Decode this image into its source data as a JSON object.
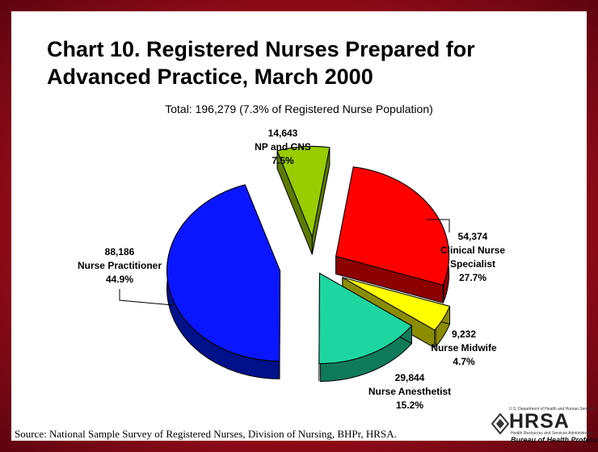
{
  "slide": {
    "title_line1": "Chart 10.  Registered Nurses Prepared for",
    "title_line2": "Advanced Practice, March 2000",
    "source": "Source: National Sample Survey of Registered Nurses, Division of Nursing, BHPr, HRSA."
  },
  "logo": {
    "top_text": "U.S. Department of Health and Human Services",
    "main_text": "HRSA",
    "small_text": "Health Resources and Services Administration",
    "bottom_text": "Bureau of Health Professions"
  },
  "chart_data": {
    "type": "pie",
    "title": "Chart 10.  Registered Nurses Prepared for Advanced Practice, March 2000",
    "subtitle": "Total: 196,279 (7.3% of Registered Nurse Population)",
    "style": "3d-exploded",
    "slices": [
      {
        "name": "NP and CNS",
        "value": 14643,
        "value_label": "14,643",
        "percent": 7.5,
        "percent_label": "7.5%",
        "color": "#99cc00",
        "side_color": "#5c7a00"
      },
      {
        "name": "Clinical Nurse Specialist",
        "value": 54374,
        "value_label": "54,374",
        "percent": 27.7,
        "percent_label": "27.7%",
        "color": "#ff0000",
        "side_color": "#8c0000"
      },
      {
        "name": "Nurse Midwife",
        "value": 9232,
        "value_label": "9,232",
        "percent": 4.7,
        "percent_label": "4.7%",
        "color": "#ffff00",
        "side_color": "#8c8c00"
      },
      {
        "name": "Nurse Anesthetist",
        "value": 29844,
        "value_label": "29,844",
        "percent": 15.2,
        "percent_label": "15.2%",
        "color": "#1ed6a0",
        "side_color": "#0f7a5a"
      },
      {
        "name": "Nurse Practitioner",
        "value": 88186,
        "value_label": "88,186",
        "percent": 44.9,
        "percent_label": "44.9%",
        "color": "#0a16ff",
        "side_color": "#00118a"
      }
    ]
  }
}
